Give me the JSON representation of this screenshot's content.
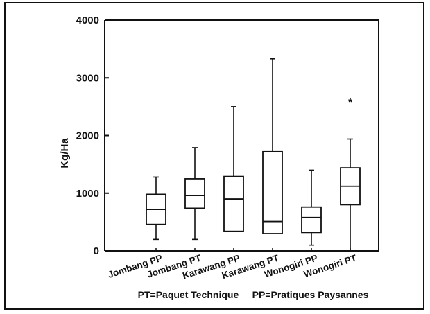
{
  "chart_data": {
    "type": "box",
    "ylabel": "Kg/Ha",
    "xlabel": "",
    "ylim": [
      0,
      4000
    ],
    "yticks": [
      0,
      1000,
      2000,
      3000,
      4000
    ],
    "ytick_labels": [
      "0",
      "1000",
      "2000",
      "3000",
      "4000"
    ],
    "footnote": "PT=Paquet Technique     PP=Pratiques Paysannes",
    "categories": [
      "Jombang PP",
      "Jombang PT",
      "Karawang PP",
      "Karawang PT",
      "Wonogiri PP",
      "Wonogiri PT"
    ],
    "boxes": [
      {
        "category": "Jombang PP",
        "min": 200,
        "q1": 460,
        "median": 720,
        "q3": 980,
        "max": 1280
      },
      {
        "category": "Jombang PT",
        "min": 200,
        "q1": 740,
        "median": 960,
        "q3": 1250,
        "max": 1790
      },
      {
        "category": "Karawang PP",
        "min": 340,
        "q1": 340,
        "median": 900,
        "q3": 1290,
        "max": 2500
      },
      {
        "category": "Karawang PT",
        "min": 300,
        "q1": 300,
        "median": 510,
        "q3": 1720,
        "max": 3330
      },
      {
        "category": "Wonogiri PP",
        "min": 100,
        "q1": 320,
        "median": 580,
        "q3": 760,
        "max": 1400
      },
      {
        "category": "Wonogiri PT",
        "min": 0,
        "q1": 800,
        "median": 1120,
        "q3": 1440,
        "max": 1940
      }
    ],
    "outliers": [
      {
        "category": "Wonogiri PT",
        "value": 2620,
        "marker": "*"
      }
    ],
    "grid": false,
    "legend": "none"
  }
}
